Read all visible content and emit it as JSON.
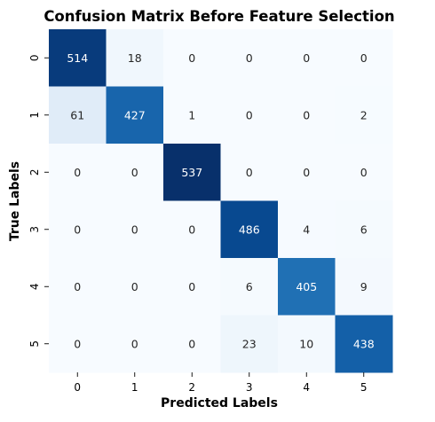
{
  "chart_data": {
    "type": "heatmap",
    "title": "Confusion Matrix Before Feature Selection",
    "xlabel": "Predicted Labels",
    "ylabel": "True Labels",
    "x_categories": [
      "0",
      "1",
      "2",
      "3",
      "4",
      "5"
    ],
    "y_categories": [
      "0",
      "1",
      "2",
      "3",
      "4",
      "5"
    ],
    "values": [
      [
        514,
        18,
        0,
        0,
        0,
        0
      ],
      [
        61,
        427,
        1,
        0,
        0,
        2
      ],
      [
        0,
        0,
        537,
        0,
        0,
        0
      ],
      [
        0,
        0,
        0,
        486,
        4,
        6
      ],
      [
        0,
        0,
        0,
        6,
        405,
        9
      ],
      [
        0,
        0,
        0,
        23,
        10,
        438
      ]
    ],
    "colormap": "Blues",
    "colorbar": false,
    "vmin": 0,
    "vmax": 537,
    "annotated": true
  }
}
